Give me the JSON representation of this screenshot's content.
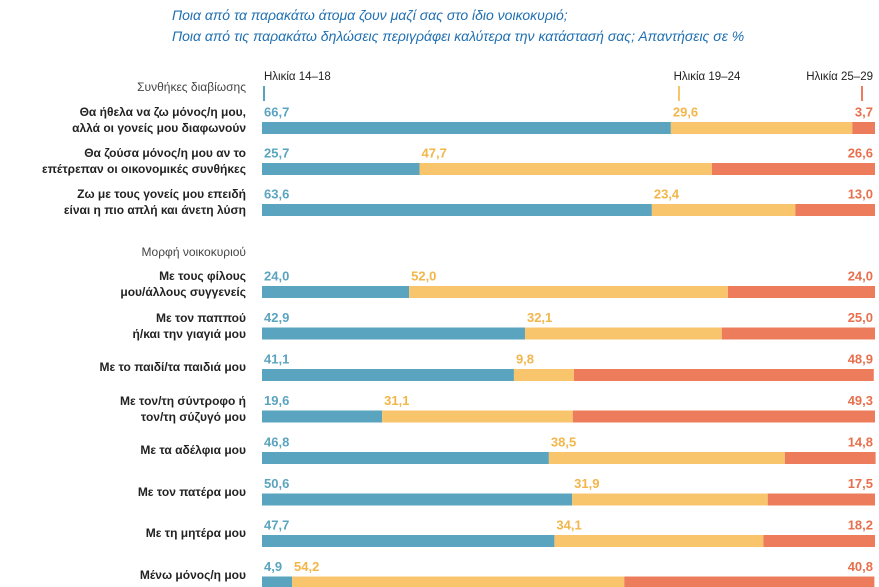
{
  "header": {
    "lines": [
      "Ποια από τα παρακάτω άτομα ζουν μαζί σας στο ίδιο νοικοκυριό;",
      "Ποια από τις παρακάτω δηλώσεις περιγράφει καλύτερα την κατάστασή σας; Απαντήσεις σε %"
    ]
  },
  "chart_data": [
    {
      "type": "stacked-bar",
      "title": "Συνθήκες διαβίωσης",
      "xlim": [
        0,
        100
      ],
      "categories": [
        "Θα ήθελα να ζω μόνος/η μου,\nαλλά οι γονείς μου διαφωνούν",
        "Θα ζούσα μόνος/η μου αν το\nεπέτρεπαν οι οικονομικές συνθήκες",
        "Ζω με τους γονείς μου επειδή\nείναι η πιο απλή και άνετη λύση"
      ],
      "series": [
        {
          "name": "Ηλικία 14–18",
          "color": "#5ba4bf",
          "values": [
            66.7,
            25.7,
            63.6
          ],
          "value_labels": [
            "66,7",
            "25,7",
            "63,6"
          ]
        },
        {
          "name": "Ηλικία 19–24",
          "color": "#f8c56d",
          "values": [
            29.6,
            47.7,
            23.4
          ],
          "value_labels": [
            "29,6",
            "47,7",
            "23,4"
          ]
        },
        {
          "name": "Ηλικία 25–29",
          "color": "#ec7c5b",
          "values": [
            3.7,
            26.6,
            13.0
          ],
          "value_labels": [
            "3,7",
            "26,6",
            "13,0"
          ]
        }
      ]
    },
    {
      "type": "stacked-bar",
      "title": "Μορφή νοικοκυριού",
      "xlim": [
        0,
        100
      ],
      "categories": [
        "Με τους φίλους\nμου/άλλους συγγενείς",
        "Με τον παππού\nή/και την γιαγιά μου",
        "Με το παιδί/τα παιδιά μου",
        "Με τον/τη σύντροφο ή\nτον/τη σύζυγό μου",
        "Με τα αδέλφια μου",
        "Με τον πατέρα μου",
        "Με τη μητέρα μου",
        "Μένω μόνος/η μου"
      ],
      "series": [
        {
          "color": "#5ba4bf",
          "values": [
            24.0,
            42.9,
            41.1,
            19.6,
            46.8,
            50.6,
            47.7,
            4.9
          ],
          "value_labels": [
            "24,0",
            "42,9",
            "41,1",
            "19,6",
            "46,8",
            "50,6",
            "47,7",
            "4,9"
          ]
        },
        {
          "color": "#f8c56d",
          "values": [
            52.0,
            32.1,
            9.8,
            31.1,
            38.5,
            31.9,
            34.1,
            54.2
          ],
          "value_labels": [
            "52,0",
            "32,1",
            "9,8",
            "31,1",
            "38,5",
            "31,9",
            "34,1",
            "54,2"
          ]
        },
        {
          "color": "#ec7c5b",
          "values": [
            24.0,
            25.0,
            48.9,
            49.3,
            14.8,
            17.5,
            18.2,
            40.8
          ],
          "value_labels": [
            "24,0",
            "25,0",
            "48,9",
            "49,3",
            "14,8",
            "17,5",
            "18,2",
            "40,8"
          ]
        }
      ]
    }
  ]
}
